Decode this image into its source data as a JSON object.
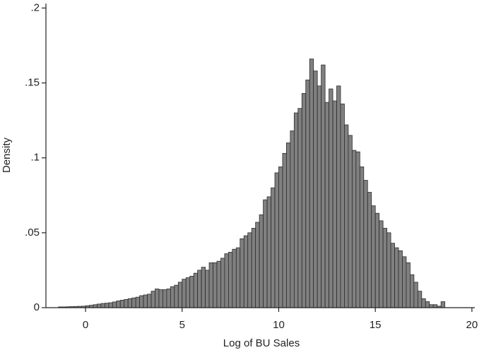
{
  "chart_data": {
    "type": "histogram",
    "xlabel": "Log of BU Sales",
    "ylabel": "Density",
    "color": "#808080",
    "edgecolor": "#2b2b2b",
    "bins": [
      -1.4,
      -1.2,
      -1.0,
      -0.8,
      -0.6,
      -0.4,
      -0.2,
      0.0,
      0.2,
      0.4,
      0.6,
      0.8,
      1.0,
      1.2,
      1.4,
      1.6,
      1.8,
      2.0,
      2.2,
      2.4,
      2.6,
      2.8,
      3.0,
      3.2,
      3.4,
      3.6,
      3.8,
      4.0,
      4.2,
      4.4,
      4.6,
      4.8,
      5.0,
      5.2,
      5.4,
      5.6,
      5.8,
      6.0,
      6.2,
      6.4,
      6.6,
      6.8,
      7.0,
      7.2,
      7.4,
      7.6,
      7.8,
      8.0,
      8.2,
      8.4,
      8.6,
      8.8,
      9.0,
      9.2,
      9.4,
      9.6,
      9.8,
      10.0,
      10.2,
      10.4,
      10.6,
      10.8,
      11.0,
      11.2,
      11.4,
      11.6,
      11.8,
      12.0,
      12.2,
      12.4,
      12.6,
      12.8,
      13.0,
      13.2,
      13.4,
      13.6,
      13.8,
      14.0,
      14.2,
      14.4,
      14.6,
      14.8,
      15.0,
      15.2,
      15.4,
      15.6,
      15.8,
      16.0,
      16.2,
      16.4,
      16.6,
      16.8,
      17.0,
      17.2,
      17.4,
      17.6,
      17.8,
      18.0,
      18.2,
      18.4,
      18.6
    ],
    "values": [
      0.0005,
      0.0005,
      0.0006,
      0.0007,
      0.0008,
      0.0009,
      0.001,
      0.0013,
      0.0016,
      0.002,
      0.0024,
      0.0028,
      0.003,
      0.0033,
      0.0038,
      0.0045,
      0.005,
      0.0055,
      0.006,
      0.0065,
      0.007,
      0.008,
      0.0085,
      0.009,
      0.011,
      0.0125,
      0.012,
      0.012,
      0.0125,
      0.014,
      0.015,
      0.017,
      0.019,
      0.02,
      0.021,
      0.023,
      0.025,
      0.027,
      0.025,
      0.03,
      0.03,
      0.031,
      0.033,
      0.036,
      0.037,
      0.039,
      0.04,
      0.046,
      0.048,
      0.05,
      0.053,
      0.057,
      0.062,
      0.072,
      0.074,
      0.08,
      0.09,
      0.094,
      0.103,
      0.11,
      0.118,
      0.13,
      0.133,
      0.143,
      0.152,
      0.166,
      0.158,
      0.148,
      0.162,
      0.137,
      0.146,
      0.138,
      0.148,
      0.136,
      0.122,
      0.115,
      0.105,
      0.104,
      0.094,
      0.085,
      0.077,
      0.068,
      0.063,
      0.058,
      0.053,
      0.05,
      0.043,
      0.04,
      0.038,
      0.034,
      0.03,
      0.022,
      0.017,
      0.011,
      0.006,
      0.004,
      0.002,
      0.002,
      0.001,
      0.004
    ],
    "xlim": [
      -2.05,
      20.15
    ],
    "ylim": [
      0,
      0.203
    ],
    "xticks": [
      0,
      5,
      10,
      15,
      20
    ],
    "yticks": [
      0,
      {
        "value": 0.05,
        "label": ".05"
      },
      {
        "value": 0.1,
        "label": ".1"
      },
      {
        "value": 0.15,
        "label": ".15"
      },
      {
        "value": 0.2,
        "label": ".2"
      }
    ]
  }
}
